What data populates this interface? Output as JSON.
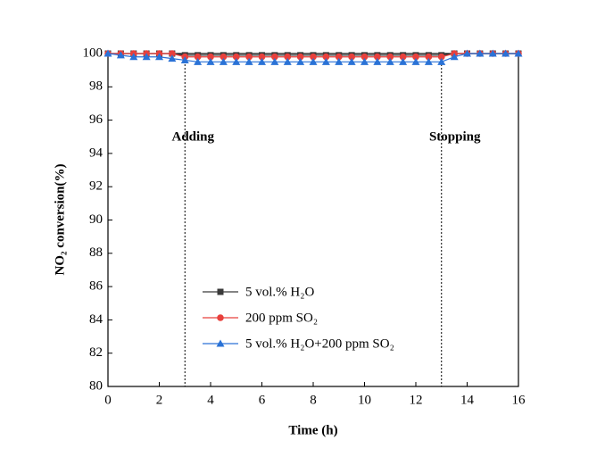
{
  "chart_data": {
    "type": "line",
    "x_label": "Time (h)",
    "y_label": "NO₂ conversion(%)",
    "x": [
      0,
      0.5,
      1,
      1.5,
      2,
      2.5,
      3,
      3.5,
      4,
      4.5,
      5,
      5.5,
      6,
      6.5,
      7,
      7.5,
      8,
      8.5,
      9,
      9.5,
      10,
      10.5,
      11,
      11.5,
      12,
      12.5,
      13,
      13.5,
      14,
      14.5,
      15,
      15.5,
      16
    ],
    "series": [
      {
        "name": "5 vol.% H₂O",
        "color": "#3a3a3a",
        "marker": "square",
        "values": [
          100,
          100,
          100,
          100,
          100,
          100,
          99.9,
          99.9,
          99.9,
          99.9,
          99.9,
          99.9,
          99.9,
          99.9,
          99.9,
          99.9,
          99.9,
          99.9,
          99.9,
          99.9,
          99.9,
          99.9,
          99.9,
          99.9,
          99.9,
          99.9,
          99.9,
          100,
          100,
          100,
          100,
          100,
          100
        ]
      },
      {
        "name": "200 ppm SO₂",
        "color": "#e8403c",
        "marker": "circle",
        "values": [
          100,
          100,
          100,
          100,
          100,
          100,
          99.8,
          99.8,
          99.8,
          99.8,
          99.8,
          99.8,
          99.8,
          99.8,
          99.8,
          99.8,
          99.8,
          99.8,
          99.8,
          99.8,
          99.8,
          99.8,
          99.8,
          99.8,
          99.8,
          99.8,
          99.8,
          100,
          100,
          100,
          100,
          100,
          100
        ]
      },
      {
        "name": "5 vol.% H₂O+200 ppm SO₂",
        "color": "#2a72d6",
        "marker": "triangle",
        "values": [
          100,
          99.9,
          99.8,
          99.8,
          99.8,
          99.7,
          99.6,
          99.5,
          99.5,
          99.5,
          99.5,
          99.5,
          99.5,
          99.5,
          99.5,
          99.5,
          99.5,
          99.5,
          99.5,
          99.5,
          99.5,
          99.5,
          99.5,
          99.5,
          99.5,
          99.5,
          99.5,
          99.8,
          100,
          100,
          100,
          100,
          100
        ]
      }
    ],
    "vlines": [
      3,
      13
    ],
    "annotations": [
      "Adding",
      "Stopping"
    ],
    "xlim": [
      0,
      16
    ],
    "xticks": [
      0,
      2,
      4,
      6,
      8,
      10,
      12,
      14,
      16
    ],
    "ylim": [
      80,
      100
    ],
    "yticks": [
      80,
      82,
      84,
      86,
      88,
      90,
      92,
      94,
      96,
      98,
      100
    ]
  }
}
